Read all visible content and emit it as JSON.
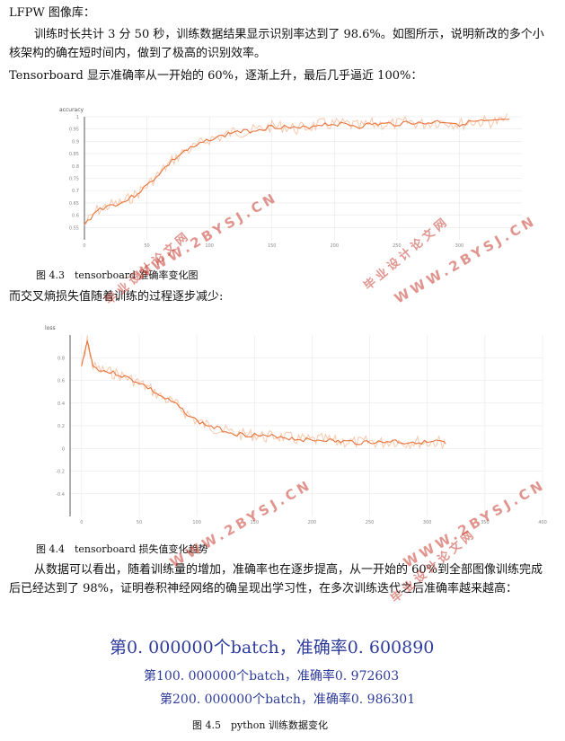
{
  "text": {
    "heading": "LFPW 图像库：",
    "para1": "训练时长共计 3 分 50 秒，训练数据结果显示识别率达到了 98.6%。如图所示，说明新改的多个小核架构的确在短时间内，做到了极高的识别效率。",
    "para2": "Tensorboard 显示准确率从一开始的 60%，逐渐上升，最后几乎逼近 100%：",
    "caption1": "图 4.3　tensorboard 准确率变化图",
    "para3": "而交叉熵损失值随着训练的过程逐步减少:",
    "caption2": "图 4.4　tensorboard 损失值变化趋势",
    "para4": "从数据可以看出，随着训练量的增加，准确率也在逐步提高，从一开始的 60%到全部图像训练完成后已经达到了 98%，证明卷积神经网络的确呈现出学习性，在多次训练迭代之后准确率越来越高：",
    "log1": "第0. 000000个batch，准确率0. 600890",
    "log2": "第100. 000000个batch，准确率0. 972603",
    "log3": "第200. 000000个batch，准确率0. 986301",
    "caption3": "图 4.5　python 训练数据变化"
  },
  "watermarks": [
    "WWW.2BYSJ.CN",
    "毕业设计论文网",
    "WWW.2BYSJ.CN",
    "毕业设计论文网",
    "WWW.2BYSJ.CN",
    "WWW.2BYSJ.CN",
    "毕业设计论文网"
  ],
  "colors": {
    "line": "#e8733a",
    "line_light": "#f7c9ad",
    "grid": "#e6e6e6",
    "log_text": "#2d3b9b",
    "watermark": "#c83c32"
  },
  "chart_data": [
    {
      "type": "line",
      "title": "accuracy",
      "xlabel": "",
      "ylabel": "",
      "xlim": [
        0,
        350
      ],
      "ylim": [
        0.5,
        1.0
      ],
      "xticks": [
        0,
        50,
        100,
        150,
        200,
        250,
        300
      ],
      "yticks": [
        1,
        0.95,
        0.9,
        0.85,
        0.8,
        0.75,
        0.7,
        0.65,
        0.6,
        0.55
      ],
      "grid": true,
      "series": [
        {
          "x": [
            0,
            10,
            20,
            30,
            40,
            50,
            60,
            70,
            80,
            90,
            100,
            110,
            120,
            130,
            140,
            150,
            160,
            170,
            180,
            190,
            200,
            210,
            220,
            230,
            240,
            250,
            260,
            270,
            280,
            290,
            300,
            310,
            320,
            330,
            340
          ],
          "values": [
            0.56,
            0.62,
            0.64,
            0.65,
            0.68,
            0.72,
            0.77,
            0.82,
            0.86,
            0.88,
            0.91,
            0.92,
            0.94,
            0.94,
            0.95,
            0.96,
            0.96,
            0.95,
            0.96,
            0.97,
            0.97,
            0.97,
            0.96,
            0.97,
            0.97,
            0.97,
            0.98,
            0.97,
            0.98,
            0.98,
            0.97,
            0.98,
            0.98,
            0.98,
            0.99
          ]
        }
      ]
    },
    {
      "type": "line",
      "title": "loss",
      "xlabel": "",
      "ylabel": "",
      "xlim": [
        -10,
        400
      ],
      "ylim": [
        -0.6,
        1.0
      ],
      "xticks": [
        0,
        50,
        100,
        150,
        200,
        250,
        300,
        350,
        400
      ],
      "yticks": [
        0.8,
        0.6,
        0.4,
        0.2,
        0,
        -0.2,
        -0.4
      ],
      "grid": true,
      "series": [
        {
          "x": [
            0,
            5,
            10,
            20,
            30,
            40,
            50,
            60,
            70,
            80,
            90,
            100,
            110,
            120,
            130,
            140,
            150,
            160,
            170,
            180,
            190,
            200,
            210,
            220,
            230,
            240,
            250,
            260,
            270,
            280,
            290,
            300,
            310,
            316
          ],
          "values": [
            0.72,
            0.95,
            0.72,
            0.68,
            0.66,
            0.62,
            0.58,
            0.52,
            0.45,
            0.4,
            0.32,
            0.24,
            0.2,
            0.17,
            0.14,
            0.12,
            0.12,
            0.1,
            0.11,
            0.09,
            0.08,
            0.07,
            0.08,
            0.06,
            0.06,
            0.05,
            0.06,
            0.05,
            0.07,
            0.05,
            0.06,
            0.05,
            0.06,
            0.04
          ]
        }
      ]
    }
  ]
}
